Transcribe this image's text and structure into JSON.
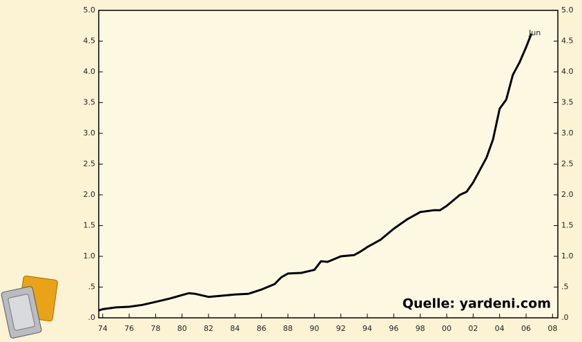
{
  "chart_data": {
    "type": "line",
    "annotation": "Jun",
    "source": "Quelle: yardeni.com",
    "x": [
      1973.7,
      1974,
      1975,
      1976,
      1977,
      1978,
      1979,
      1980,
      1980.5,
      1981,
      1982,
      1983,
      1984,
      1985,
      1986,
      1987,
      1987.5,
      1988,
      1989,
      1990,
      1990.5,
      1991,
      1992,
      1993,
      1993.5,
      1994,
      1995,
      1996,
      1997,
      1998,
      1999,
      1999.5,
      2000,
      2001,
      2001.5,
      2002,
      2003,
      2003.5,
      2004,
      2004.5,
      2005,
      2005.5,
      2006,
      2006.4
    ],
    "series": [
      {
        "color": "#000000",
        "values": [
          0.12,
          0.14,
          0.17,
          0.18,
          0.21,
          0.26,
          0.31,
          0.37,
          0.4,
          0.39,
          0.34,
          0.36,
          0.38,
          0.39,
          0.46,
          0.55,
          0.66,
          0.72,
          0.73,
          0.78,
          0.92,
          0.91,
          1.0,
          1.02,
          1.08,
          1.15,
          1.27,
          1.45,
          1.6,
          1.72,
          1.75,
          1.75,
          1.82,
          2.0,
          2.05,
          2.2,
          2.6,
          2.9,
          3.4,
          3.55,
          3.95,
          4.15,
          4.4,
          4.62
        ]
      }
    ],
    "xlim": [
      1973.7,
      2008.4
    ],
    "xticks": [
      {
        "value": 1974,
        "label": "74"
      },
      {
        "value": 1976,
        "label": "76"
      },
      {
        "value": 1978,
        "label": "78"
      },
      {
        "value": 1980,
        "label": "80"
      },
      {
        "value": 1982,
        "label": "82"
      },
      {
        "value": 1984,
        "label": "84"
      },
      {
        "value": 1986,
        "label": "86"
      },
      {
        "value": 1988,
        "label": "88"
      },
      {
        "value": 1990,
        "label": "90"
      },
      {
        "value": 1992,
        "label": "92"
      },
      {
        "value": 1994,
        "label": "94"
      },
      {
        "value": 1996,
        "label": "96"
      },
      {
        "value": 1998,
        "label": "98"
      },
      {
        "value": 2000,
        "label": "00"
      },
      {
        "value": 2002,
        "label": "02"
      },
      {
        "value": 2004,
        "label": "04"
      },
      {
        "value": 2006,
        "label": "06"
      },
      {
        "value": 2008,
        "label": "08"
      }
    ],
    "ylim": [
      0,
      5
    ],
    "yticks": [
      {
        "value": 0,
        "label": ".0"
      },
      {
        "value": 0.5,
        "label": ".5"
      },
      {
        "value": 1,
        "label": "1.0"
      },
      1.5,
      {
        "value": 2,
        "label": "2.0"
      },
      2.5,
      {
        "value": 3,
        "label": "3.0"
      },
      3.5,
      {
        "value": 4,
        "label": "4.0"
      },
      4.5,
      {
        "value": 5,
        "label": "5.0"
      }
    ],
    "y2lim": [
      0,
      5
    ],
    "y2ticks": [
      {
        "value": 0,
        "label": ".0"
      },
      {
        "value": 0.5,
        "label": ".5"
      },
      {
        "value": 1,
        "label": "1.0"
      },
      1.5,
      {
        "value": 2,
        "label": "2.0"
      },
      2.5,
      {
        "value": 3,
        "label": "3.0"
      },
      3.5,
      {
        "value": 4,
        "label": "4.0"
      },
      4.5,
      {
        "value": 5,
        "label": "5.0"
      }
    ]
  }
}
